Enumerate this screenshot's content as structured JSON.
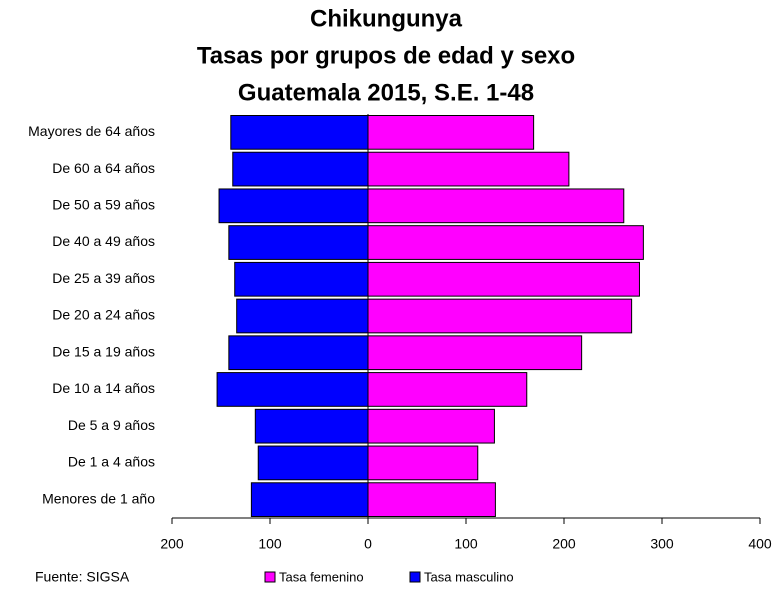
{
  "chart_data": {
    "type": "pyramid",
    "title": [
      "Chikungunya",
      "Tasas por grupos de edad y sexo",
      "Guatemala 2015, S.E. 1-48"
    ],
    "source": "Fuente: SIGSA",
    "categories": [
      "Mayores de 64 años",
      "De 60 a 64 años",
      "De 50 a 59 años",
      "De 40 a 49 años",
      "De 25 a 39 años",
      "De 20 a 24 años",
      "De 15 a 19 años",
      "De 10 a 14 años",
      "De 5 a 9 años",
      "De 1 a 4 años",
      "Menores de 1 año"
    ],
    "series": [
      {
        "name": "Tasa femenino",
        "color": "#ff00ff",
        "values": [
          169,
          205,
          261,
          281,
          277,
          269,
          218,
          162,
          129,
          112,
          130
        ]
      },
      {
        "name": "Tasa masculino",
        "color": "#0000ff",
        "values": [
          -140,
          -138,
          -152,
          -142,
          -136,
          -134,
          -142,
          -154,
          -115,
          -112,
          -119
        ]
      }
    ],
    "xlim": [
      -200,
      400
    ],
    "xticks": [
      {
        "value": -200,
        "label": "200"
      },
      {
        "value": -100,
        "label": "100"
      },
      0,
      100,
      200,
      300,
      400
    ]
  }
}
